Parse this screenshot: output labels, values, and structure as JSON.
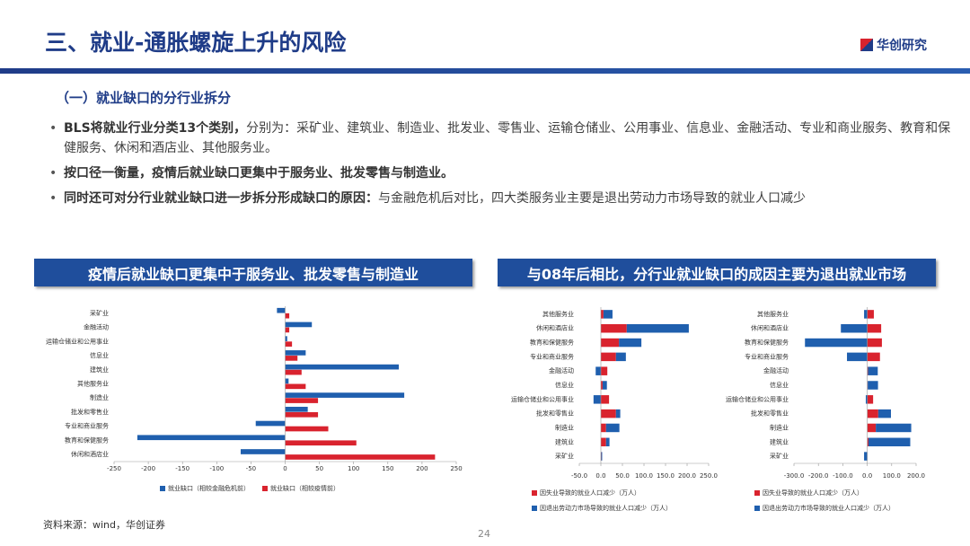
{
  "header": {
    "title": "三、就业-通胀螺旋上升的风险",
    "logo": "华创研究"
  },
  "section": "（一）就业缺口的分行业拆分",
  "bullets": [
    {
      "bold": "BLS将就业行业分类13个类别，",
      "text": "分别为：采矿业、建筑业、制造业、批发业、零售业、运输仓储业、公用事业、信息业、金融活动、专业和商业服务、教育和保健服务、休闲和酒店业、其他服务业。"
    },
    {
      "bold": "按口径一衡量，疫情后就业缺口更集中于服务业、批发零售与制造业。",
      "text": ""
    },
    {
      "bold": "同时还可对分行业就业缺口进一步拆分形成缺口的原因：",
      "text": "与金融危机后对比，四大类服务业主要是退出劳动力市场导致的就业人口减少"
    }
  ],
  "banners": [
    "疫情后就业缺口更集中于服务业、批发零售与制造业",
    "与08年后相比，分行业就业缺口的成因主要为退出就业市场"
  ],
  "chart_data": [
    {
      "type": "hbar",
      "categories": [
        "采矿业",
        "金融活动",
        "运输仓储业和公用事业",
        "信息业",
        "建筑业",
        "其他服务业",
        "制造业",
        "批发和零售业",
        "专业和商业服务",
        "教育和保健服务",
        "休闲和酒店业"
      ],
      "series": [
        {
          "name": "就业缺口（相较金融危机前）",
          "color": "#1f5fae",
          "values": [
            -12,
            39,
            3,
            30,
            166,
            5,
            174,
            33,
            -43,
            -216,
            -65
          ]
        },
        {
          "name": "就业缺口（相较疫情前）",
          "color": "#d9232e",
          "values": [
            6,
            6,
            10,
            18,
            24,
            30,
            48,
            48,
            63,
            104,
            219
          ]
        }
      ],
      "xlim": [
        -250,
        250
      ],
      "xticks": [
        -250,
        -200,
        -150,
        -100,
        -50,
        0,
        50,
        100,
        150,
        200,
        250
      ]
    },
    {
      "type": "stacked_hbar",
      "categories": [
        "其他服务业",
        "休闲和酒店业",
        "教育和保健服务",
        "专业和商业服务",
        "金融活动",
        "信息业",
        "运输仓储业和公用事业",
        "批发和零售业",
        "制造业",
        "建筑业",
        "采矿业"
      ],
      "series": [
        {
          "name": "因失业导致的就业人口减少（万人）",
          "color": "#d9232e",
          "values": [
            6,
            60,
            42,
            35,
            15,
            4,
            19,
            35,
            12,
            12,
            1
          ]
        },
        {
          "name": "因退出劳动力市场导致的就业人口减少（万人）",
          "color": "#1f5fae",
          "values": [
            21,
            144,
            52,
            23,
            -12,
            10,
            -17,
            10,
            31,
            8,
            2
          ]
        }
      ],
      "xlim": [
        -50,
        250
      ],
      "xticks": [
        {
          "value": -50,
          "label": "-50.0"
        },
        {
          "value": 0,
          "label": "0.0"
        },
        {
          "value": 50,
          "label": "50.0"
        },
        {
          "value": 100,
          "label": "100.0"
        },
        {
          "value": 150,
          "label": "150.0"
        },
        {
          "value": 200,
          "label": "200.0"
        },
        {
          "value": 250,
          "label": "250.0"
        }
      ]
    },
    {
      "type": "stacked_hbar",
      "categories": [
        "其他服务业",
        "休闲和酒店业",
        "教育和保健服务",
        "专业和商业服务",
        "金融活动",
        "信息业",
        "运输仓储业和公用事业",
        "批发和零售业",
        "制造业",
        "建筑业",
        "采矿业"
      ],
      "series": [
        {
          "name": "因失业导致的就业人口减少（万人）",
          "color": "#d9232e",
          "values": [
            27,
            57,
            60,
            52,
            3,
            2,
            24,
            45,
            35,
            5,
            0
          ]
        },
        {
          "name": "因退出劳动力市场导致的就业人口减少（万人）",
          "color": "#1f5fae",
          "values": [
            -13,
            -108,
            -255,
            -83,
            40,
            42,
            -6,
            52,
            145,
            171,
            -13
          ]
        }
      ],
      "xlim": [
        -300,
        200
      ],
      "xticks": [
        {
          "value": -300,
          "label": "-300.0"
        },
        {
          "value": -200,
          "label": "-200.0"
        },
        {
          "value": -100,
          "label": "-100.0"
        },
        {
          "value": 0,
          "label": "0.0"
        },
        {
          "value": 100,
          "label": "100.0"
        },
        {
          "value": 200,
          "label": "200.0"
        }
      ]
    }
  ],
  "source": "资料来源：wind，华创证券",
  "page": "24"
}
